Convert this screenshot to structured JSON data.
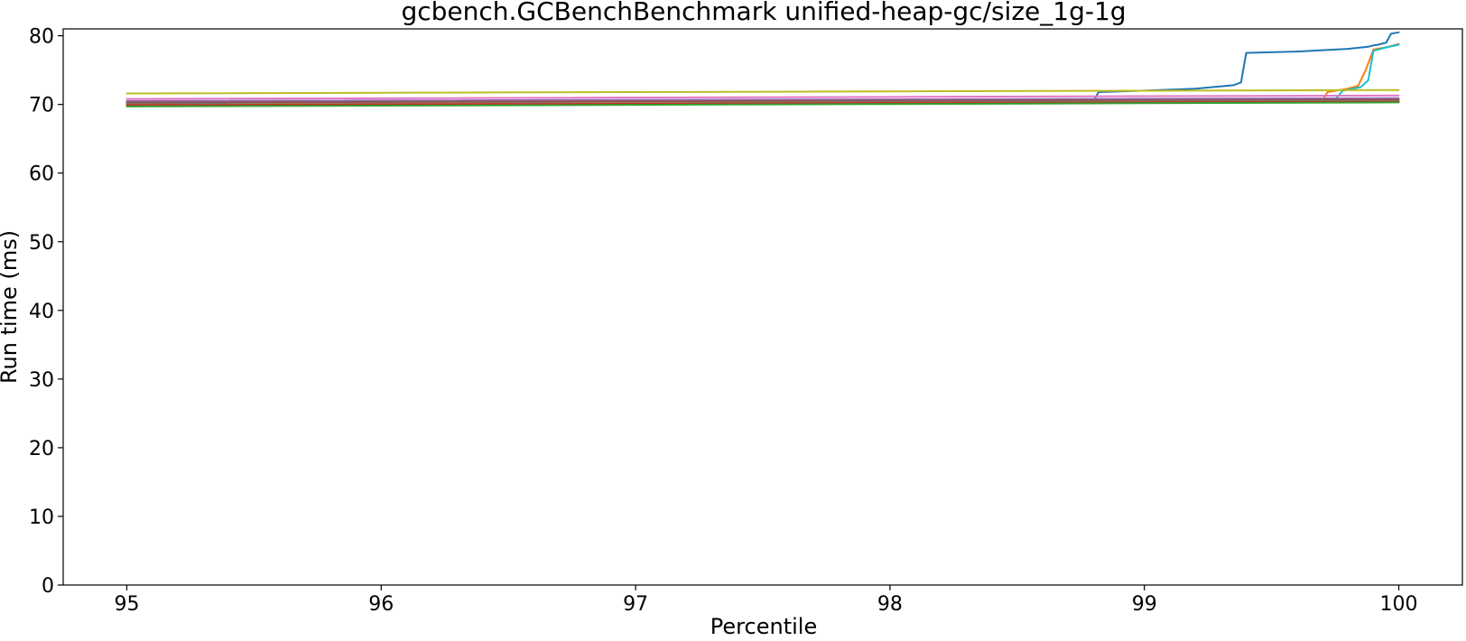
{
  "chart_data": {
    "type": "line",
    "title": "gcbench.GCBenchBenchmark unified-heap-gc/size_1g-1g",
    "xlabel": "Percentile",
    "ylabel": "Run time (ms)",
    "xlim": [
      94.75,
      100.25
    ],
    "ylim": [
      0,
      81
    ],
    "xticks": [
      95,
      96,
      97,
      98,
      99,
      100
    ],
    "yticks": [
      0,
      10,
      20,
      30,
      40,
      50,
      60,
      70,
      80
    ],
    "grid": false,
    "legend": "none",
    "series": [
      {
        "color": "#1f77b4",
        "x": [
          95,
          98.8,
          98.82,
          99.0,
          99.2,
          99.35,
          99.38,
          99.4,
          99.6,
          99.7,
          99.8,
          99.88,
          99.9,
          99.92,
          99.95,
          99.97,
          100
        ],
        "y": [
          70.2,
          70.5,
          71.8,
          72.0,
          72.3,
          72.8,
          73.2,
          77.5,
          77.7,
          77.9,
          78.1,
          78.4,
          78.6,
          78.7,
          79.0,
          80.3,
          80.5
        ]
      },
      {
        "color": "#ff7f0e",
        "x": [
          95,
          99.7,
          99.72,
          99.8,
          99.84,
          99.87,
          99.9,
          99.95,
          100
        ],
        "y": [
          70.0,
          70.6,
          71.8,
          72.3,
          72.7,
          75.0,
          78.0,
          78.3,
          78.8
        ]
      },
      {
        "color": "#17becf",
        "x": [
          95,
          99.75,
          99.78,
          99.85,
          99.88,
          99.9,
          99.95,
          100
        ],
        "y": [
          70.4,
          70.7,
          72.0,
          72.5,
          73.5,
          77.8,
          78.3,
          78.7
        ]
      },
      {
        "color": "#bcbd22",
        "x": [
          95,
          100
        ],
        "y": [
          71.6,
          72.1
        ]
      },
      {
        "color": "#e377c2",
        "x": [
          95,
          100
        ],
        "y": [
          70.8,
          71.3
        ]
      },
      {
        "color": "#9467bd",
        "x": [
          95,
          100
        ],
        "y": [
          70.5,
          70.9
        ]
      },
      {
        "color": "#8c564b",
        "x": [
          95,
          100
        ],
        "y": [
          70.3,
          70.7
        ]
      },
      {
        "color": "#7f7f7f",
        "x": [
          95,
          100
        ],
        "y": [
          70.0,
          70.5
        ]
      },
      {
        "color": "#d62728",
        "x": [
          95,
          100
        ],
        "y": [
          69.9,
          70.4
        ]
      },
      {
        "color": "#2ca02c",
        "x": [
          95,
          100
        ],
        "y": [
          69.7,
          70.3
        ]
      }
    ]
  }
}
